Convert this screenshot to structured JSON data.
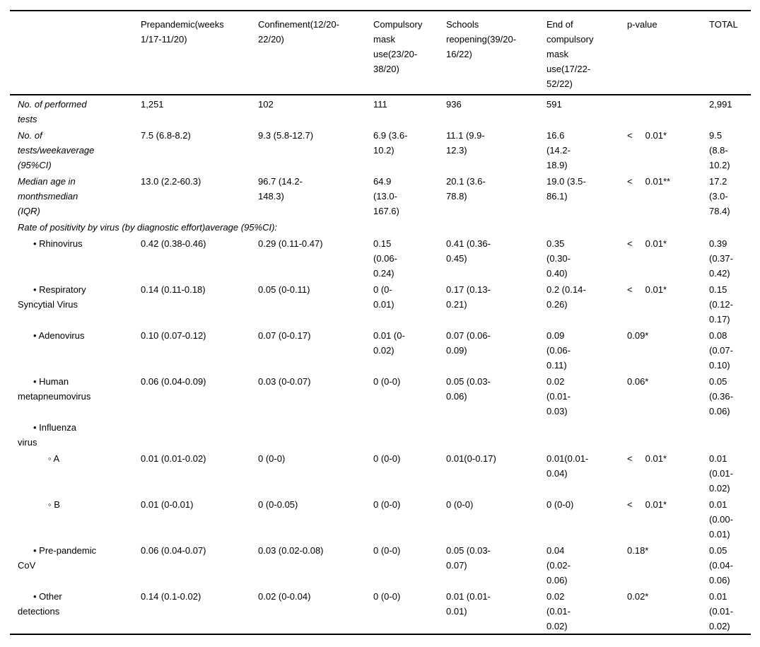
{
  "header": {
    "cols": [
      "",
      "Prepandemic(weeks 1/17-11/20)",
      "Confinement(12/20-22/20)",
      "Compulsory mask use(23/20-38/20)",
      "Schools reopening(39/20-16/22)",
      "End of compulsory mask use(17/22-52/22)",
      "p-value",
      "TOTAL"
    ]
  },
  "rows": [
    {
      "label": "No. of performed tests",
      "cells": [
        "1,251",
        "102",
        "111",
        "936",
        "591",
        "",
        "2,991"
      ]
    },
    {
      "label": "No. of tests/weekaverage (95%CI)",
      "cells": [
        "7.5 (6.8-8.2)",
        "9.3 (5.8-12.7)",
        "6.9 (3.6-10.2)",
        "11.1 (9.9-12.3)",
        "16.6 (14.2-18.9)",
        "<     0.01*",
        "9.5 (8.8-10.2)"
      ]
    },
    {
      "label": "Median age in monthsmedian (IQR)",
      "cells": [
        "13.0 (2.2-60.3)",
        "96.7 (14.2-148.3)",
        "64.9 (13.0-167.6)",
        "20.1 (3.6-78.8)",
        "19.0 (3.5-86.1)",
        "<     0.01**",
        "17.2 (3.0-78.4)"
      ]
    },
    {
      "label": "Rate of positivity by virus (by diagnostic effort)average (95%CI):",
      "cells": []
    },
    {
      "label": "• Rhinovirus",
      "cells": [
        "0.42 (0.38-0.46)",
        "0.29 (0.11-0.47)",
        "0.15 (0.06-0.24)",
        "0.41 (0.36-0.45)",
        "0.35 (0.30-0.40)",
        "<     0.01*",
        "0.39 (0.37-0.42)"
      ]
    },
    {
      "label": "• Respiratory Syncytial Virus",
      "cells": [
        "0.14 (0.11-0.18)",
        "0.05 (0-0.11)",
        "0 (0-0.01)",
        "0.17 (0.13-0.21)",
        "0.2 (0.14-0.26)",
        "<     0.01*",
        "0.15 (0.12-0.17)"
      ]
    },
    {
      "label": "• Adenovirus",
      "cells": [
        "0.10 (0.07-0.12)",
        "0.07 (0-0.17)",
        "0.01 (0-0.02)",
        "0.07 (0.06-0.09)",
        "0.09 (0.06-0.11)",
        "0.09*",
        "0.08 (0.07-0.10)"
      ]
    },
    {
      "label": "• Human metapneumovirus",
      "cells": [
        "0.06 (0.04-0.09)",
        "0.03 (0-0.07)",
        "0 (0-0)",
        "0.05 (0.03-0.06)",
        "0.02 (0.01-0.03)",
        "0.06*",
        "0.05 (0.36-0.06)"
      ]
    },
    {
      "label": "• Influenza virus",
      "cells": [
        "",
        "",
        "",
        "",
        "",
        "",
        ""
      ]
    },
    {
      "label": "◦ A",
      "cells": [
        "0.01 (0.01-0.02)",
        "0 (0-0)",
        "0 (0-0)",
        "0.01(0-0.17)",
        "0.01(0.01-0.04)",
        "<     0.01*",
        "0.01 (0.01-0.02)"
      ]
    },
    {
      "label": "◦ B",
      "cells": [
        "0.01 (0-0.01)",
        "0 (0-0.05)",
        "0 (0-0)",
        "0 (0-0)",
        "0 (0-0)",
        "<     0.01*",
        "0.01 (0.00-0.01)"
      ]
    },
    {
      "label": "• Pre-pandemic CoV",
      "cells": [
        "0.06 (0.04-0.07)",
        "0.03 (0.02-0.08)",
        "0 (0-0)",
        "0.05 (0.03-0.07)",
        "0.04 (0.02-0.06)",
        "0.18*",
        "0.05 (0.04-0.06)"
      ]
    },
    {
      "label": "• Other detections",
      "cells": [
        "0.14 (0.1-0.02)",
        "0.02 (0-0.04)",
        "0 (0-0)",
        "0.01 (0.01-0.01)",
        "0.02 (0.01-0.02)",
        "0.02*",
        "0.01 (0.01-0.02)"
      ]
    }
  ]
}
